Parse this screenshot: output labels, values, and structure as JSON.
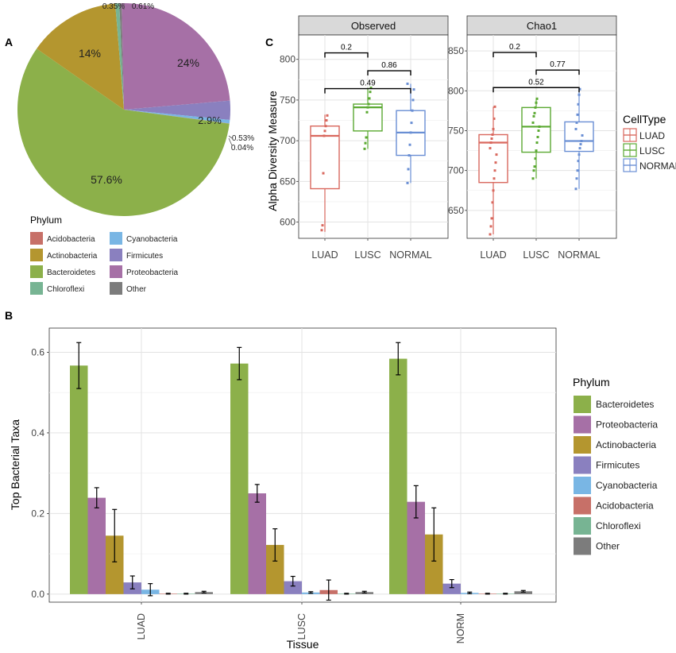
{
  "colors": {
    "Acidobacteria": "#C77068",
    "Actinobacteria": "#B4962F",
    "Bacteroidetes": "#8CB04A",
    "Chloroflexi": "#77B493",
    "Cyanobacteria": "#79B6E4",
    "Firmicutes": "#8A80BF",
    "Proteobacteria": "#A670A6",
    "Other": "#7C7C7C",
    "LUAD": "#D9685E",
    "LUSC": "#5BA932",
    "NORMAL": "#6A8FD4"
  },
  "chart_data": [
    {
      "panel": "A",
      "type": "pie",
      "legend_title": "Phylum",
      "legend": [
        "Acidobacteria",
        "Actinobacteria",
        "Bacteroidetes",
        "Chloroflexi",
        "Cyanobacteria",
        "Firmicutes",
        "Proteobacteria",
        "Other"
      ],
      "slices": [
        {
          "name": "Other",
          "value": 0.35,
          "label": "0.35%"
        },
        {
          "name": "Proteobacteria",
          "value": 24,
          "label": "24%"
        },
        {
          "name": "Firmicutes",
          "value": 2.9,
          "label": "2.9%"
        },
        {
          "name": "Cyanobacteria",
          "value": 0.53,
          "label": "0.53%"
        },
        {
          "name": "Acidobacteria",
          "value": 0.04,
          "label": "0.04%"
        },
        {
          "name": "Bacteroidetes",
          "value": 57.6,
          "label": "57.6%"
        },
        {
          "name": "Actinobacteria",
          "value": 14,
          "label": "14%"
        },
        {
          "name": "Chloroflexi",
          "value": 0.61,
          "label": "0.61%"
        }
      ]
    },
    {
      "panel": "C",
      "type": "box",
      "ylabel": "Alpha Diversity Measure",
      "legend_title": "CellType",
      "legend": [
        "LUAD",
        "LUSC",
        "NORMAL"
      ],
      "categories": [
        "LUAD",
        "LUSC",
        "NORMAL"
      ],
      "facets": [
        {
          "name": "Observed",
          "ylim": [
            580,
            830
          ],
          "yticks": [
            600,
            650,
            700,
            750,
            800
          ],
          "boxes": [
            {
              "group": "LUAD",
              "min": 588,
              "q1": 641,
              "median": 706,
              "q3": 718,
              "max": 732,
              "points": [
                590,
                596,
                660,
                706,
                712,
                718,
                725,
                731
              ]
            },
            {
              "group": "LUSC",
              "min": 690,
              "q1": 712,
              "median": 741,
              "q3": 745,
              "max": 765,
              "points": [
                690,
                697,
                704,
                735,
                741,
                745,
                752,
                760,
                765
              ]
            },
            {
              "group": "NORMAL",
              "min": 648,
              "q1": 682,
              "median": 710,
              "q3": 737,
              "max": 770,
              "points": [
                648,
                665,
                682,
                695,
                710,
                722,
                737,
                750,
                763,
                770
              ]
            }
          ],
          "comparisons": [
            {
              "from": "LUAD",
              "to": "LUSC",
              "label": "0.2",
              "y": 808
            },
            {
              "from": "LUSC",
              "to": "NORMAL",
              "label": "0.86",
              "y": 786
            },
            {
              "from": "LUAD",
              "to": "NORMAL",
              "label": "0.49",
              "y": 764
            }
          ]
        },
        {
          "name": "Chao1",
          "ylim": [
            615,
            870
          ],
          "yticks": [
            650,
            700,
            750,
            800,
            850
          ],
          "boxes": [
            {
              "group": "LUAD",
              "min": 620,
              "q1": 685,
              "median": 735,
              "q3": 745,
              "max": 780,
              "points": [
                620,
                630,
                640,
                660,
                675,
                690,
                700,
                710,
                720,
                728,
                735,
                740,
                745,
                752,
                765,
                780
              ]
            },
            {
              "group": "LUSC",
              "min": 690,
              "q1": 723,
              "median": 755,
              "q3": 779,
              "max": 790,
              "points": [
                690,
                700,
                705,
                715,
                725,
                735,
                742,
                750,
                755,
                760,
                768,
                772,
                779,
                785,
                790
              ]
            },
            {
              "group": "NORMAL",
              "min": 677,
              "q1": 724,
              "median": 737,
              "q3": 761,
              "max": 802,
              "points": [
                677,
                690,
                700,
                712,
                720,
                728,
                733,
                737,
                744,
                752,
                760,
                770,
                783,
                795,
                802
              ]
            }
          ],
          "comparisons": [
            {
              "from": "LUAD",
              "to": "LUSC",
              "label": "0.2",
              "y": 848
            },
            {
              "from": "LUSC",
              "to": "NORMAL",
              "label": "0.77",
              "y": 826
            },
            {
              "from": "LUAD",
              "to": "NORMAL",
              "label": "0.52",
              "y": 804
            }
          ]
        }
      ]
    },
    {
      "panel": "B",
      "type": "bar",
      "xlabel": "Tissue",
      "ylabel": "Top Bacterial Taxa",
      "ylim": [
        -0.02,
        0.66
      ],
      "yticks": [
        0.0,
        0.2,
        0.4,
        0.6
      ],
      "ytick_labels": [
        "0.0",
        "0.2",
        "0.4",
        "0.6"
      ],
      "categories": [
        "LUAD",
        "LUSC",
        "NORM"
      ],
      "legend_title": "Phylum",
      "legend": [
        "Bacteroidetes",
        "Proteobacteria",
        "Actinobacteria",
        "Firmicutes",
        "Cyanobacteria",
        "Acidobacteria",
        "Chloroflexi",
        "Other"
      ],
      "series": [
        {
          "name": "Bacteroidetes",
          "values": [
            0.567,
            0.572,
            0.584
          ],
          "errors": [
            0.057,
            0.04,
            0.04
          ]
        },
        {
          "name": "Proteobacteria",
          "values": [
            0.239,
            0.25,
            0.229
          ],
          "errors": [
            0.025,
            0.022,
            0.04
          ]
        },
        {
          "name": "Actinobacteria",
          "values": [
            0.145,
            0.122,
            0.148
          ],
          "errors": [
            0.065,
            0.04,
            0.066
          ]
        },
        {
          "name": "Firmicutes",
          "values": [
            0.029,
            0.032,
            0.026
          ],
          "errors": [
            0.016,
            0.012,
            0.01
          ]
        },
        {
          "name": "Cyanobacteria",
          "values": [
            0.011,
            0.004,
            0.003
          ],
          "errors": [
            0.015,
            0.002,
            0.002
          ]
        },
        {
          "name": "Acidobacteria",
          "values": [
            0.001,
            0.01,
            0.001
          ],
          "errors": [
            0.001,
            0.025,
            0.001
          ]
        },
        {
          "name": "Chloroflexi",
          "values": [
            0.001,
            0.001,
            0.001
          ],
          "errors": [
            0.001,
            0.001,
            0.001
          ]
        },
        {
          "name": "Other",
          "values": [
            0.005,
            0.005,
            0.007
          ],
          "errors": [
            0.002,
            0.002,
            0.002
          ]
        }
      ]
    }
  ]
}
